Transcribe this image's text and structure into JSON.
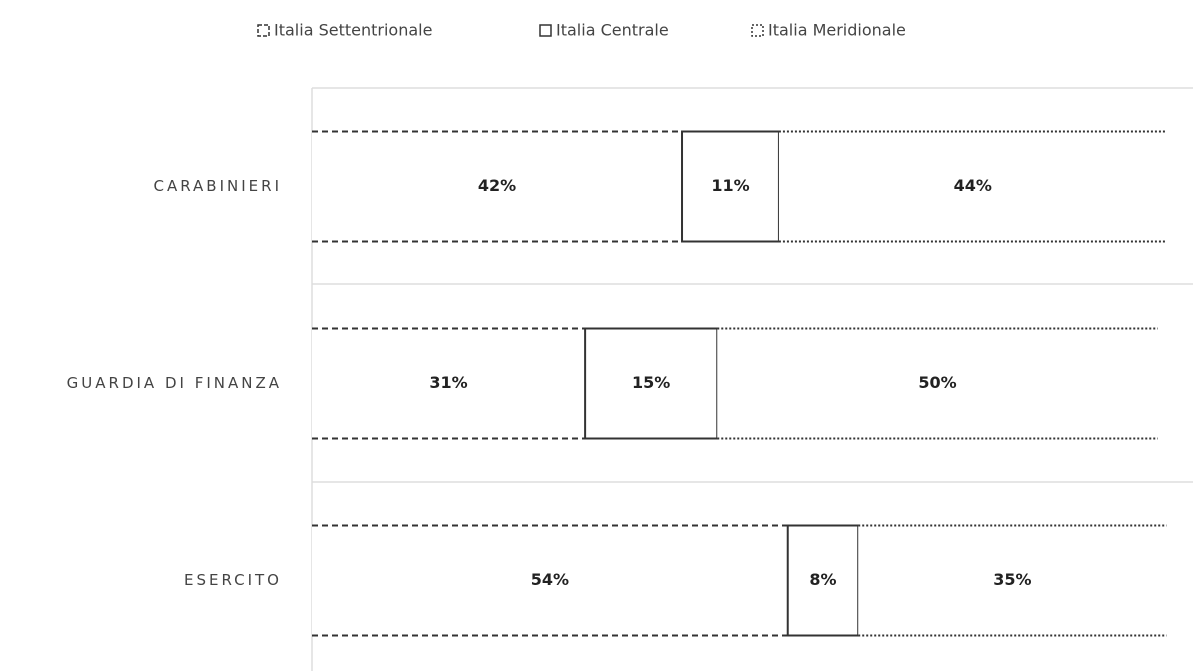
{
  "chart_data": {
    "type": "stacked-bar-horizontal",
    "categories": [
      "CARABINIERI",
      "GUARDIA DI FINANZA",
      "ESERCITO"
    ],
    "series": [
      {
        "name": "Italia Settentrionale",
        "color": "#333333",
        "border_style": "dashed",
        "values": [
          42,
          31,
          54
        ],
        "value_labels": [
          "42%",
          "31%",
          "54%"
        ]
      },
      {
        "name": "Italia Centrale",
        "color": "#333333",
        "border_style": "solid",
        "values": [
          11,
          15,
          8
        ],
        "value_labels": [
          "11%",
          "15%",
          "8%"
        ]
      },
      {
        "name": "Italia Meridionale",
        "color": "#333333",
        "border_style": "dotted",
        "values": [
          44,
          50,
          35
        ],
        "value_labels": [
          "44%",
          "50%",
          "35%"
        ]
      }
    ],
    "xlim": [
      0,
      100
    ]
  }
}
